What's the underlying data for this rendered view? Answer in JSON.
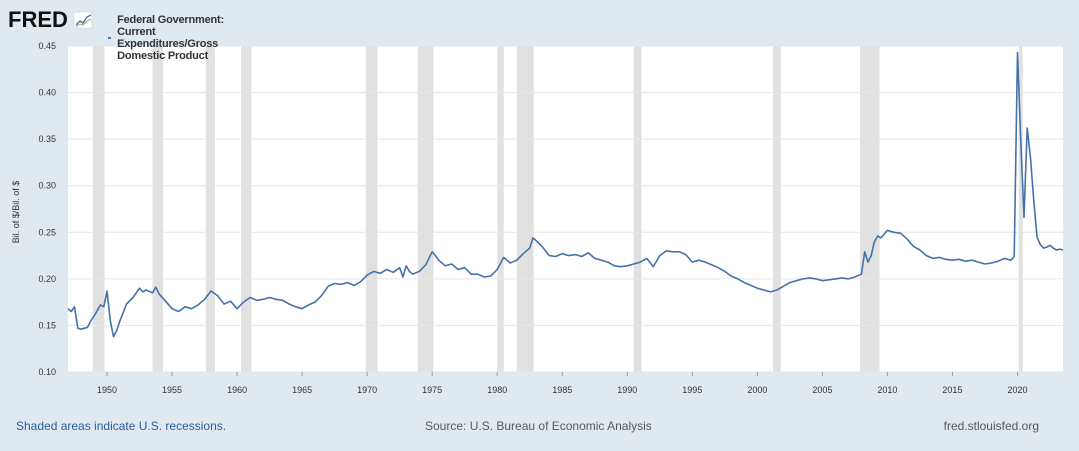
{
  "header": {
    "logo_text": "FRED",
    "legend_label": "Federal Government: Current Expenditures/Gross Domestic Product"
  },
  "footer": {
    "recessions_note": "Shaded areas indicate U.S. recessions.",
    "source": "Source: U.S. Bureau of Economic Analysis",
    "site": "fred.stlouisfed.org"
  },
  "colors": {
    "series": "#4572a7",
    "recession": "#e1e1e1",
    "background": "#e1e9f0"
  },
  "chart_data": {
    "type": "line",
    "title": "Federal Government: Current Expenditures/Gross Domestic Product",
    "xlabel": "",
    "ylabel": "Bil. of $/Bil. of $",
    "xlim": [
      1947,
      2023.5
    ],
    "ylim": [
      0.1,
      0.45
    ],
    "yticks": [
      "0.10",
      "0.15",
      "0.20",
      "0.25",
      "0.30",
      "0.35",
      "0.40",
      "0.45"
    ],
    "xticks": [
      "1950",
      "1955",
      "1960",
      "1965",
      "1970",
      "1975",
      "1980",
      "1985",
      "1990",
      "1995",
      "2000",
      "2005",
      "2010",
      "2015",
      "2020"
    ],
    "grid": true,
    "recessions": [
      [
        1948.9,
        1949.8
      ],
      [
        1953.5,
        1954.3
      ],
      [
        1957.6,
        1958.3
      ],
      [
        1960.3,
        1961.1
      ],
      [
        1969.9,
        1970.8
      ],
      [
        1973.9,
        1975.1
      ],
      [
        1980.0,
        1980.5
      ],
      [
        1981.5,
        1982.8
      ],
      [
        1990.5,
        1991.1
      ],
      [
        2001.2,
        2001.8
      ],
      [
        2007.9,
        2009.4
      ],
      [
        2020.1,
        2020.4
      ]
    ],
    "series": [
      {
        "x": [
          1947.0,
          1947.25,
          1947.5,
          1947.75,
          1948.0,
          1948.5,
          1948.75,
          1949.0,
          1949.5,
          1949.75,
          1950.0,
          1950.25,
          1950.5,
          1950.75,
          1951.0,
          1951.5,
          1952.0,
          1952.5,
          1952.75,
          1953.0,
          1953.5,
          1953.75,
          1954.0,
          1954.5,
          1955.0,
          1955.5,
          1956.0,
          1956.5,
          1957.0,
          1957.5,
          1958.0,
          1958.5,
          1959.0,
          1959.5,
          1960.0,
          1960.5,
          1961.0,
          1961.5,
          1962.0,
          1962.5,
          1963.0,
          1963.5,
          1964.0,
          1964.5,
          1965.0,
          1965.5,
          1966.0,
          1966.5,
          1967.0,
          1967.5,
          1968.0,
          1968.5,
          1969.0,
          1969.5,
          1970.0,
          1970.5,
          1971.0,
          1971.5,
          1972.0,
          1972.5,
          1972.75,
          1973.0,
          1973.25,
          1973.5,
          1974.0,
          1974.5,
          1975.0,
          1975.25,
          1975.5,
          1976.0,
          1976.5,
          1977.0,
          1977.5,
          1978.0,
          1978.5,
          1979.0,
          1979.5,
          1980.0,
          1980.5,
          1981.0,
          1981.5,
          1982.0,
          1982.5,
          1982.75,
          1983.0,
          1983.5,
          1984.0,
          1984.5,
          1985.0,
          1985.5,
          1986.0,
          1986.5,
          1987.0,
          1987.5,
          1988.0,
          1988.5,
          1989.0,
          1989.5,
          1990.0,
          1990.5,
          1991.0,
          1991.5,
          1992.0,
          1992.5,
          1993.0,
          1993.5,
          1994.0,
          1994.5,
          1995.0,
          1995.5,
          1996.0,
          1996.5,
          1997.0,
          1997.5,
          1998.0,
          1998.5,
          1999.0,
          1999.5,
          2000.0,
          2000.5,
          2001.0,
          2001.5,
          2002.0,
          2002.5,
          2003.0,
          2003.5,
          2004.0,
          2004.5,
          2005.0,
          2005.5,
          2006.0,
          2006.5,
          2007.0,
          2007.5,
          2008.0,
          2008.25,
          2008.5,
          2008.75,
          2009.0,
          2009.25,
          2009.5,
          2010.0,
          2010.5,
          2011.0,
          2011.5,
          2012.0,
          2012.5,
          2013.0,
          2013.5,
          2014.0,
          2014.5,
          2015.0,
          2015.5,
          2016.0,
          2016.5,
          2017.0,
          2017.5,
          2018.0,
          2018.5,
          2019.0,
          2019.5,
          2019.75,
          2020.0,
          2020.25,
          2020.5,
          2020.75,
          2021.0,
          2021.25,
          2021.5,
          2021.75,
          2022.0,
          2022.25,
          2022.5,
          2022.75,
          2023.0,
          2023.25,
          2023.5
        ],
        "y": [
          0.168,
          0.165,
          0.17,
          0.147,
          0.146,
          0.148,
          0.155,
          0.16,
          0.172,
          0.17,
          0.187,
          0.155,
          0.138,
          0.145,
          0.155,
          0.173,
          0.18,
          0.19,
          0.186,
          0.188,
          0.185,
          0.191,
          0.184,
          0.176,
          0.168,
          0.165,
          0.17,
          0.168,
          0.172,
          0.178,
          0.187,
          0.182,
          0.173,
          0.176,
          0.168,
          0.175,
          0.18,
          0.177,
          0.178,
          0.18,
          0.178,
          0.177,
          0.173,
          0.17,
          0.168,
          0.172,
          0.175,
          0.182,
          0.192,
          0.195,
          0.194,
          0.196,
          0.193,
          0.197,
          0.204,
          0.208,
          0.206,
          0.21,
          0.207,
          0.212,
          0.202,
          0.214,
          0.208,
          0.205,
          0.208,
          0.215,
          0.229,
          0.225,
          0.22,
          0.214,
          0.216,
          0.21,
          0.212,
          0.205,
          0.205,
          0.202,
          0.203,
          0.21,
          0.223,
          0.217,
          0.22,
          0.227,
          0.233,
          0.244,
          0.241,
          0.234,
          0.225,
          0.224,
          0.227,
          0.225,
          0.226,
          0.224,
          0.228,
          0.222,
          0.22,
          0.218,
          0.214,
          0.213,
          0.214,
          0.216,
          0.218,
          0.222,
          0.213,
          0.225,
          0.23,
          0.229,
          0.229,
          0.226,
          0.218,
          0.22,
          0.218,
          0.215,
          0.212,
          0.208,
          0.203,
          0.2,
          0.196,
          0.193,
          0.19,
          0.188,
          0.186,
          0.188,
          0.192,
          0.196,
          0.198,
          0.2,
          0.201,
          0.2,
          0.198,
          0.199,
          0.2,
          0.201,
          0.2,
          0.202,
          0.205,
          0.229,
          0.218,
          0.225,
          0.24,
          0.246,
          0.244,
          0.252,
          0.25,
          0.249,
          0.243,
          0.235,
          0.231,
          0.225,
          0.222,
          0.223,
          0.221,
          0.22,
          0.221,
          0.219,
          0.22,
          0.218,
          0.216,
          0.217,
          0.219,
          0.222,
          0.22,
          0.224,
          0.443,
          0.35,
          0.266,
          0.362,
          0.33,
          0.285,
          0.245,
          0.237,
          0.233,
          0.234,
          0.236,
          0.233,
          0.231,
          0.232,
          0.231
        ]
      }
    ]
  }
}
